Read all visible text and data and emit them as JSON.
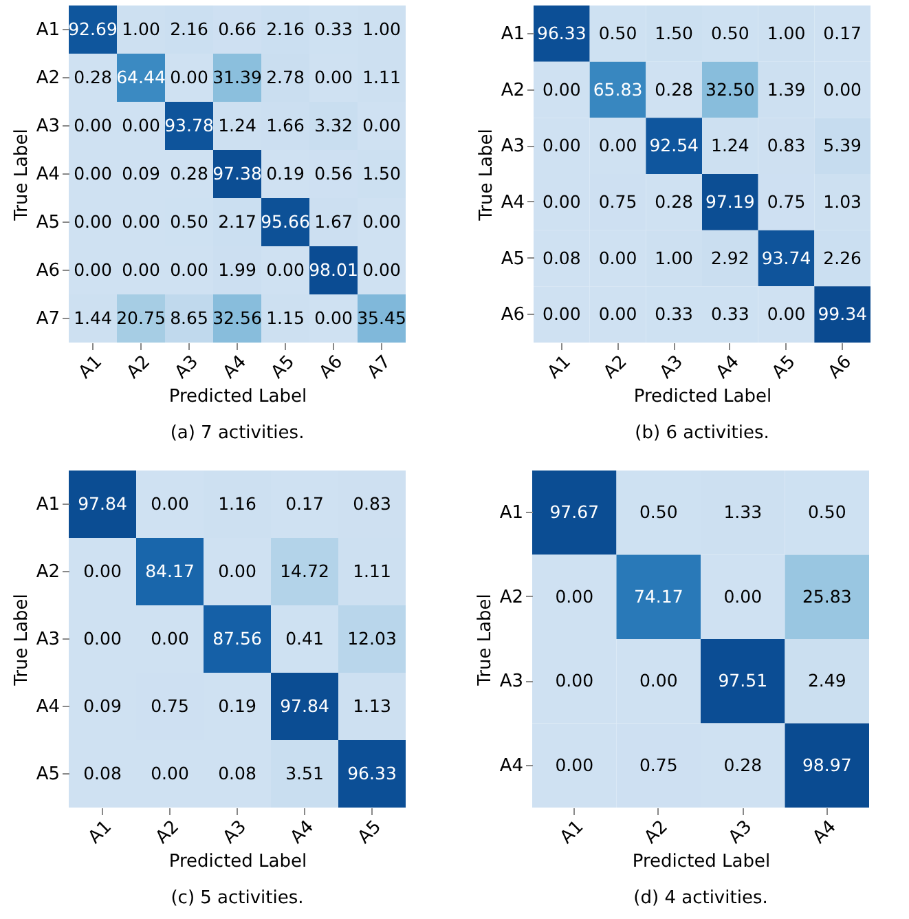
{
  "chart_data": [
    {
      "type": "heatmap",
      "title": "(a) 7 activities.",
      "xlabel": "Predicted Label",
      "ylabel": "True Label",
      "categories": [
        "A1",
        "A2",
        "A3",
        "A4",
        "A5",
        "A6",
        "A7"
      ],
      "y_categories": [
        "A1",
        "A2",
        "A3",
        "A4",
        "A5",
        "A6",
        "A7"
      ],
      "grid": false,
      "cells": [
        [
          92.69,
          1.0,
          2.16,
          0.66,
          2.16,
          0.33,
          1.0
        ],
        [
          0.28,
          64.44,
          0.0,
          31.39,
          2.78,
          0.0,
          1.11
        ],
        [
          0.0,
          0.0,
          93.78,
          1.24,
          1.66,
          3.32,
          0.0
        ],
        [
          0.0,
          0.09,
          0.28,
          97.38,
          0.19,
          0.56,
          1.5
        ],
        [
          0.0,
          0.0,
          0.5,
          2.17,
          95.66,
          1.67,
          0.0
        ],
        [
          0.0,
          0.0,
          0.0,
          1.99,
          0.0,
          98.01,
          0.0
        ],
        [
          1.44,
          20.75,
          8.65,
          32.56,
          1.15,
          0.0,
          35.45
        ]
      ],
      "cell_labels": [
        [
          "92.69",
          "1.00",
          "2.16",
          "0.66",
          "2.16",
          "0.33",
          "1.00"
        ],
        [
          "0.28",
          "64.44",
          "0.00",
          "31.39",
          "2.78",
          "0.00",
          "1.11"
        ],
        [
          "0.00",
          "0.00",
          "93.78",
          "1.24",
          "1.66",
          "3.32",
          "0.00"
        ],
        [
          "0.00",
          "0.09",
          "0.28",
          "97.38",
          "0.19",
          "0.56",
          "1.50"
        ],
        [
          "0.00",
          "0.00",
          "0.50",
          "2.17",
          "95.66",
          "1.67",
          "0.00"
        ],
        [
          "0.00",
          "0.00",
          "0.00",
          "1.99",
          "0.00",
          "98.01",
          "0.00"
        ],
        [
          "1.44",
          "20.75",
          "8.65",
          "32.56",
          "1.15",
          "0.00",
          "35.45"
        ]
      ]
    },
    {
      "type": "heatmap",
      "title": "(b) 6 activities.",
      "xlabel": "Predicted Label",
      "ylabel": "True Label",
      "categories": [
        "A1",
        "A2",
        "A3",
        "A4",
        "A5",
        "A6"
      ],
      "y_categories": [
        "A1",
        "A2",
        "A3",
        "A4",
        "A5",
        "A6"
      ],
      "grid": false,
      "cells": [
        [
          96.33,
          0.5,
          1.5,
          0.5,
          1.0,
          0.17
        ],
        [
          0.0,
          65.83,
          0.28,
          32.5,
          1.39,
          0.0
        ],
        [
          0.0,
          0.0,
          92.54,
          1.24,
          0.83,
          5.39
        ],
        [
          0.0,
          0.75,
          0.28,
          97.19,
          0.75,
          1.03
        ],
        [
          0.08,
          0.0,
          1.0,
          2.92,
          93.74,
          2.26
        ],
        [
          0.0,
          0.0,
          0.33,
          0.33,
          0.0,
          99.34
        ]
      ],
      "cell_labels": [
        [
          "96.33",
          "0.50",
          "1.50",
          "0.50",
          "1.00",
          "0.17"
        ],
        [
          "0.00",
          "65.83",
          "0.28",
          "32.50",
          "1.39",
          "0.00"
        ],
        [
          "0.00",
          "0.00",
          "92.54",
          "1.24",
          "0.83",
          "5.39"
        ],
        [
          "0.00",
          "0.75",
          "0.28",
          "97.19",
          "0.75",
          "1.03"
        ],
        [
          "0.08",
          "0.00",
          "1.00",
          "2.92",
          "93.74",
          "2.26"
        ],
        [
          "0.00",
          "0.00",
          "0.33",
          "0.33",
          "0.00",
          "99.34"
        ]
      ]
    },
    {
      "type": "heatmap",
      "title": "(c) 5 activities.",
      "xlabel": "Predicted Label",
      "ylabel": "True Label",
      "categories": [
        "A1",
        "A2",
        "A3",
        "A4",
        "A5"
      ],
      "y_categories": [
        "A1",
        "A2",
        "A3",
        "A4",
        "A5"
      ],
      "grid": false,
      "cells": [
        [
          97.84,
          0.0,
          1.16,
          0.17,
          0.83
        ],
        [
          0.0,
          84.17,
          0.0,
          14.72,
          1.11
        ],
        [
          0.0,
          0.0,
          87.56,
          0.41,
          12.03
        ],
        [
          0.09,
          0.75,
          0.19,
          97.84,
          1.13
        ],
        [
          0.08,
          0.0,
          0.08,
          3.51,
          96.33
        ]
      ],
      "cell_labels": [
        [
          "97.84",
          "0.00",
          "1.16",
          "0.17",
          "0.83"
        ],
        [
          "0.00",
          "84.17",
          "0.00",
          "14.72",
          "1.11"
        ],
        [
          "0.00",
          "0.00",
          "87.56",
          "0.41",
          "12.03"
        ],
        [
          "0.09",
          "0.75",
          "0.19",
          "97.84",
          "1.13"
        ],
        [
          "0.08",
          "0.00",
          "0.08",
          "3.51",
          "96.33"
        ]
      ]
    },
    {
      "type": "heatmap",
      "title": "(d) 4 activities.",
      "xlabel": "Predicted Label",
      "ylabel": "True Label",
      "categories": [
        "A1",
        "A2",
        "A3",
        "A4"
      ],
      "y_categories": [
        "A1",
        "A2",
        "A3",
        "A4"
      ],
      "grid": false,
      "cells": [
        [
          97.67,
          0.5,
          1.33,
          0.5
        ],
        [
          0.0,
          74.17,
          0.0,
          25.83
        ],
        [
          0.0,
          0.0,
          97.51,
          2.49
        ],
        [
          0.0,
          0.75,
          0.28,
          98.97
        ]
      ],
      "cell_labels": [
        [
          "97.67",
          "0.50",
          "1.33",
          "0.50"
        ],
        [
          "0.00",
          "74.17",
          "0.00",
          "25.83"
        ],
        [
          "0.00",
          "0.00",
          "97.51",
          "2.49"
        ],
        [
          "0.00",
          "0.75",
          "0.28",
          "98.97"
        ]
      ]
    }
  ]
}
